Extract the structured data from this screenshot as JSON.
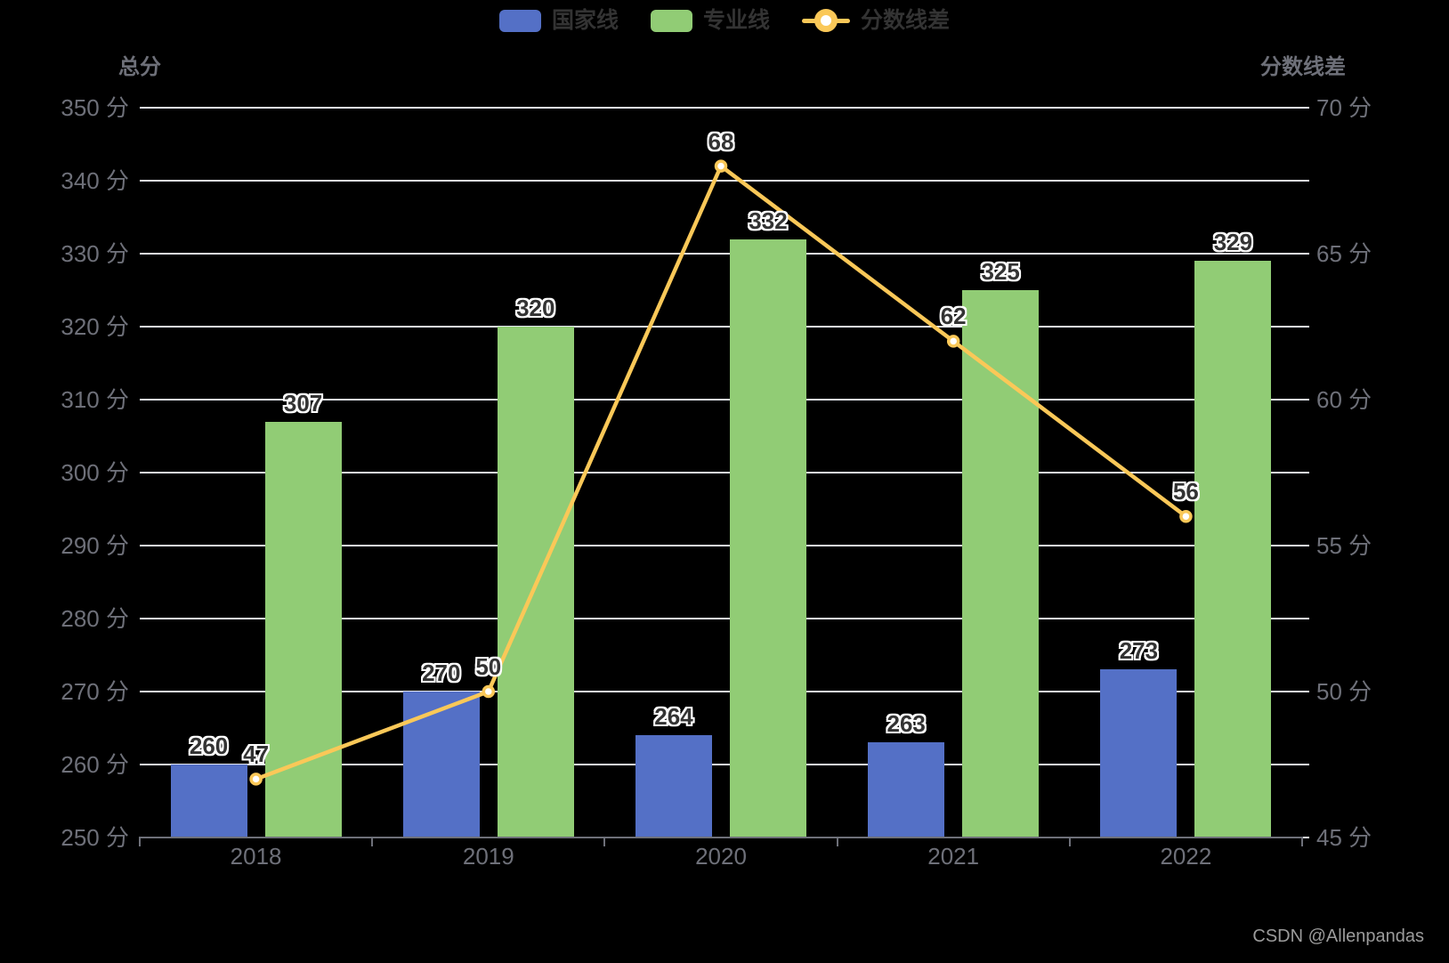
{
  "chart_data": {
    "type": "bar+line combo",
    "categories": [
      "2018",
      "2019",
      "2020",
      "2021",
      "2022"
    ],
    "series": [
      {
        "name": "国家线",
        "type": "bar",
        "axis": "left",
        "color": "#5470C6",
        "values": [
          260,
          270,
          264,
          263,
          273
        ]
      },
      {
        "name": "专业线",
        "type": "bar",
        "axis": "left",
        "color": "#91CC75",
        "values": [
          307,
          320,
          332,
          325,
          329
        ]
      },
      {
        "name": "分数线差",
        "type": "line",
        "axis": "right",
        "color": "#FAC858",
        "marker": "circle",
        "values": [
          47,
          50,
          68,
          62,
          56
        ]
      }
    ],
    "left_axis": {
      "label": "总分",
      "min": 250,
      "max": 350,
      "interval": 10,
      "unit": "分"
    },
    "right_axis": {
      "label": "分数线差",
      "min": 45,
      "max": 70,
      "interval": 5,
      "unit": "分"
    },
    "grid": true,
    "legend_position": "top-center",
    "background": "#000000"
  },
  "watermark": "CSDN @Allenpandas",
  "colors": {
    "background": "#000000",
    "axis_label": "#6E7079",
    "axis_line": "#6E7079",
    "grid_line": "#E4E7F0",
    "legend_text": "#333333",
    "value_label": "#333333",
    "value_label_outline": "#FFFFFF",
    "marker_fill": "#FFFFFF",
    "watermark_text": "#9B9B9B"
  }
}
